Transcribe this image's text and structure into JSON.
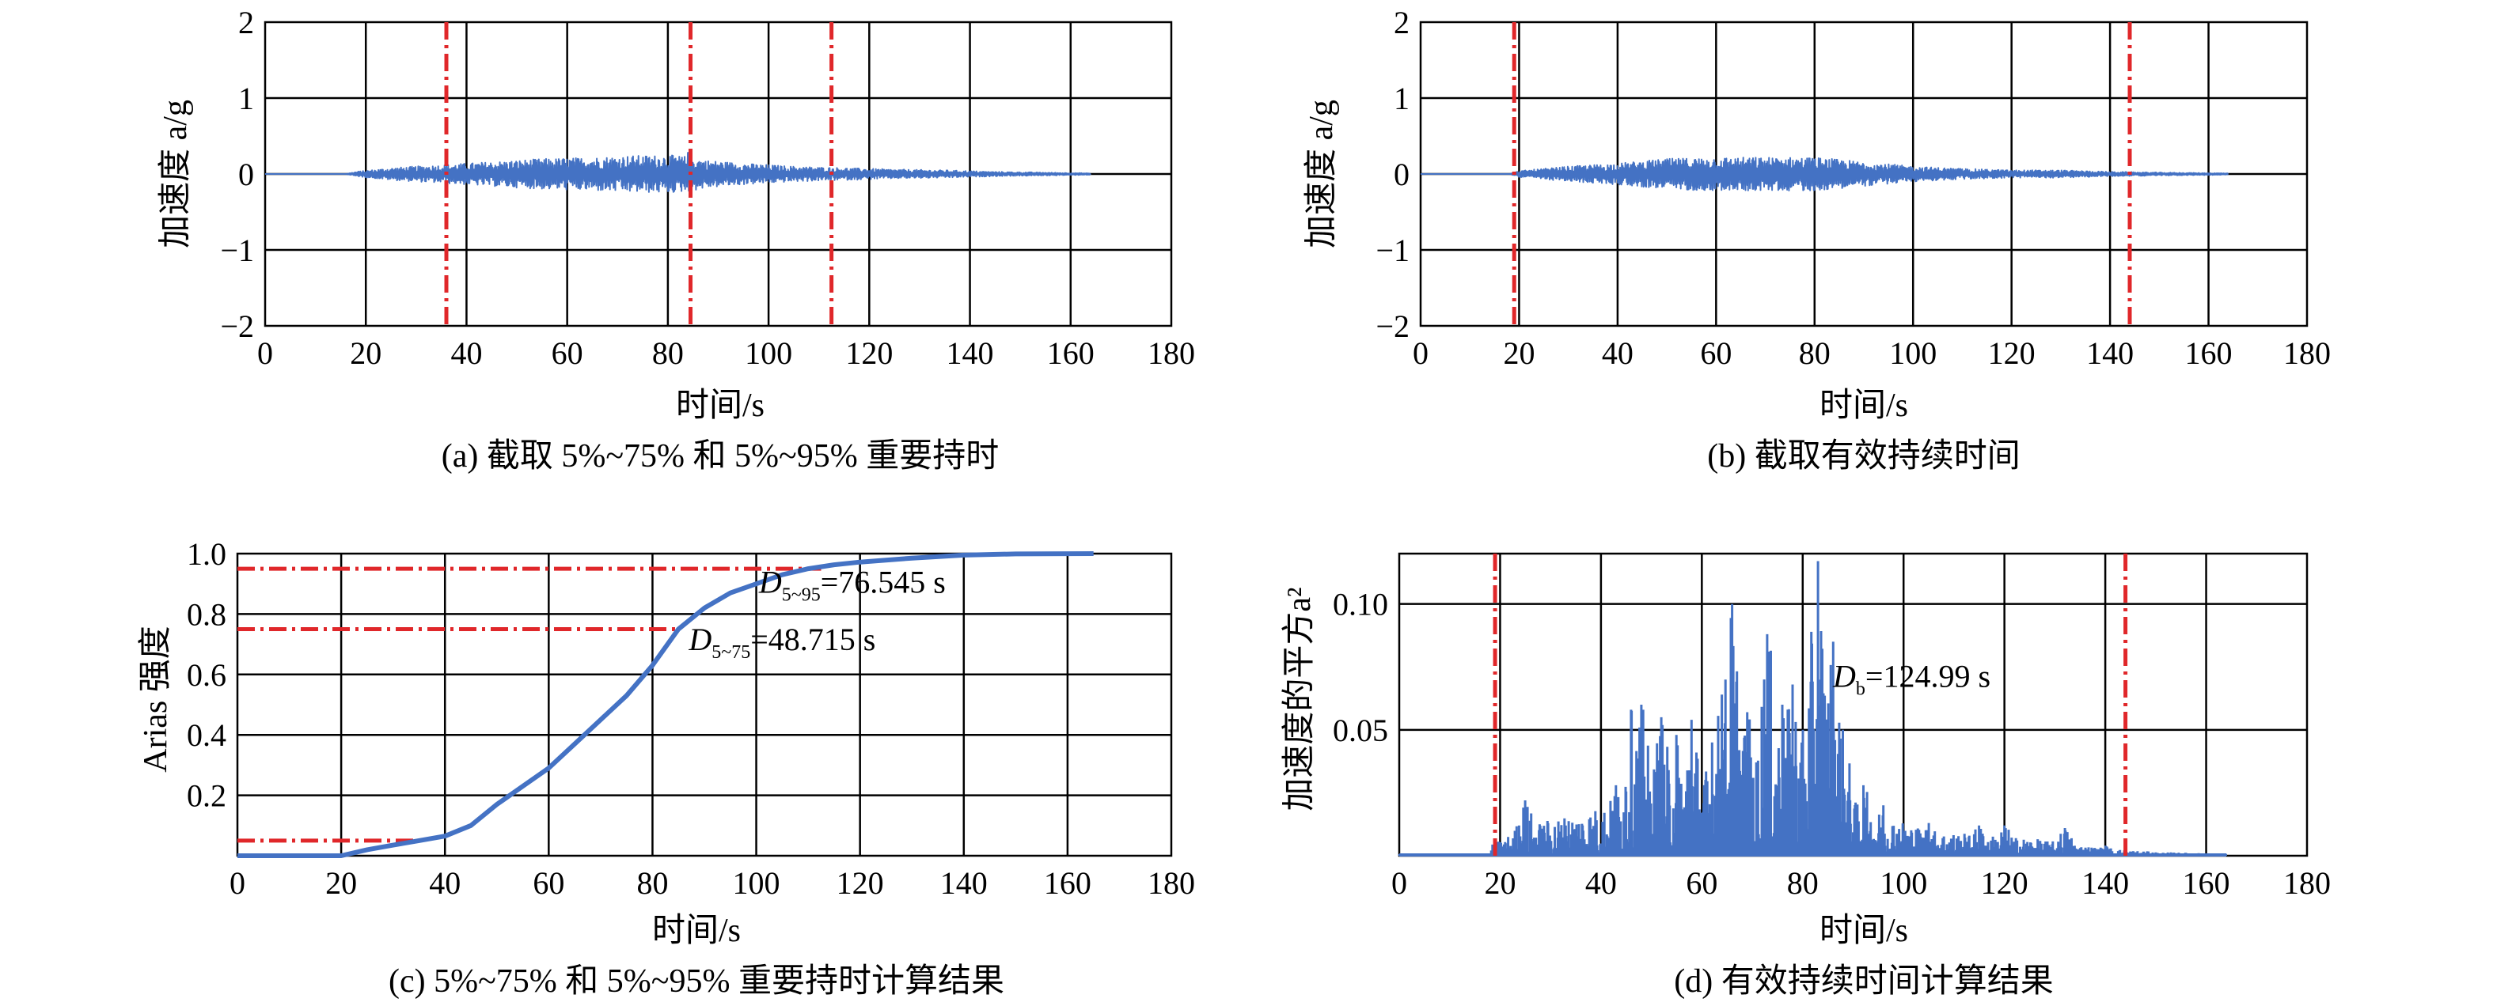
{
  "captions": {
    "a": "(a) 截取 5%~75% 和 5%~95% 重要持时",
    "b": "(b) 截取有效持续时间",
    "c": "(c) 5%~75% 和 5%~95% 重要持时计算结果",
    "d": "(d) 有效持续时间计算结果"
  },
  "chart_data": [
    {
      "id": "a",
      "type": "line",
      "xlabel": "时间/s",
      "ylabel": "加速度 a/g",
      "xlim": [
        0,
        180
      ],
      "ylim": [
        -2,
        2
      ],
      "xticks": [
        0,
        20,
        40,
        60,
        80,
        100,
        120,
        140,
        160,
        180
      ],
      "yticks": [
        2,
        1,
        0,
        -1,
        -2
      ],
      "ytick_labels": [
        "2",
        "1",
        "0",
        "−1",
        "−2"
      ],
      "grid": true,
      "series": [
        {
          "record_span": [
            0,
            164
          ],
          "envelope_x": [
            0,
            16,
            18,
            25,
            35,
            45,
            55,
            65,
            72,
            80,
            84,
            88,
            95,
            105,
            115,
            125,
            135,
            145,
            155,
            164
          ],
          "envelope_amplitude": [
            0,
            0,
            0.03,
            0.08,
            0.12,
            0.16,
            0.2,
            0.22,
            0.24,
            0.25,
            0.23,
            0.18,
            0.14,
            0.1,
            0.08,
            0.06,
            0.05,
            0.03,
            0.02,
            0.01
          ],
          "peak": {
            "x": 84,
            "y": 0.28
          }
        }
      ],
      "vlines": [
        36,
        84.5,
        112.5
      ],
      "vline_color": "#E0272A"
    },
    {
      "id": "b",
      "type": "line",
      "xlabel": "时间/s",
      "ylabel": "加速度 a/g",
      "xlim": [
        0,
        180
      ],
      "ylim": [
        -2,
        2
      ],
      "xticks": [
        0,
        20,
        40,
        60,
        80,
        100,
        120,
        140,
        160,
        180
      ],
      "yticks": [
        2,
        1,
        0,
        -1,
        -2
      ],
      "ytick_labels": [
        "2",
        "1",
        "0",
        "−1",
        "−2"
      ],
      "grid": true,
      "series": [
        {
          "record_span": [
            0,
            164
          ],
          "envelope_x": [
            0,
            18,
            20,
            30,
            40,
            50,
            60,
            70,
            80,
            90,
            100,
            110,
            120,
            130,
            140,
            150,
            164
          ],
          "envelope_amplitude": [
            0,
            0,
            0.04,
            0.1,
            0.14,
            0.2,
            0.22,
            0.22,
            0.22,
            0.16,
            0.1,
            0.07,
            0.05,
            0.05,
            0.03,
            0.02,
            0.01
          ]
        }
      ],
      "vlines": [
        19,
        144
      ],
      "vline_color": "#E0272A"
    },
    {
      "id": "c",
      "type": "line",
      "xlabel": "时间/s",
      "ylabel": "Arias 强度",
      "xlim": [
        0,
        180
      ],
      "ylim": [
        0,
        1.0
      ],
      "xticks": [
        0,
        20,
        40,
        60,
        80,
        100,
        120,
        140,
        160,
        180
      ],
      "yticks": [
        0.2,
        0.4,
        0.6,
        0.8,
        1.0
      ],
      "ytick_labels": [
        "0.2",
        "0.4",
        "0.6",
        "0.8",
        "1.0"
      ],
      "grid": true,
      "series": [
        {
          "x": [
            0,
            20,
            25,
            30,
            35,
            40,
            45,
            50,
            55,
            60,
            65,
            70,
            75,
            80,
            85,
            90,
            95,
            100,
            105,
            110,
            115,
            120,
            130,
            140,
            150,
            165
          ],
          "y": [
            0,
            0,
            0.02,
            0.035,
            0.05,
            0.065,
            0.1,
            0.17,
            0.23,
            0.29,
            0.37,
            0.45,
            0.53,
            0.63,
            0.75,
            0.82,
            0.87,
            0.9,
            0.93,
            0.95,
            0.963,
            0.972,
            0.985,
            0.995,
            0.999,
            1.0
          ]
        }
      ],
      "hlines": [
        {
          "y": 0.05,
          "x_end": 35
        },
        {
          "y": 0.75,
          "x_end": 84.5
        },
        {
          "y": 0.95,
          "x_end": 112.5
        }
      ],
      "annotations": [
        {
          "main": "D",
          "sub": "5~95",
          "text": "=76.545 s",
          "x": 100.5,
          "y": 0.87
        },
        {
          "main": "D",
          "sub": "5~75",
          "text": "=48.715 s",
          "x": 87,
          "y": 0.68
        }
      ]
    },
    {
      "id": "d",
      "type": "line",
      "xlabel": "时间/s",
      "ylabel": "加速度的平方a²",
      "xlim": [
        0,
        180
      ],
      "ylim": [
        0,
        0.12
      ],
      "xticks": [
        0,
        20,
        40,
        60,
        80,
        100,
        120,
        140,
        160,
        180
      ],
      "yticks": [
        0.05,
        0.1
      ],
      "ytick_labels": [
        "0.05",
        "0.10"
      ],
      "grid": true,
      "series": [
        {
          "record_span": [
            0,
            164
          ],
          "peaks": [
            {
              "x": 25,
              "y": 0.022
            },
            {
              "x": 33,
              "y": 0.012
            },
            {
              "x": 43,
              "y": 0.028
            },
            {
              "x": 46,
              "y": 0.058
            },
            {
              "x": 48,
              "y": 0.06
            },
            {
              "x": 52,
              "y": 0.055
            },
            {
              "x": 55,
              "y": 0.048
            },
            {
              "x": 58,
              "y": 0.054
            },
            {
              "x": 62,
              "y": 0.045
            },
            {
              "x": 64,
              "y": 0.064
            },
            {
              "x": 66,
              "y": 0.1
            },
            {
              "x": 69,
              "y": 0.057
            },
            {
              "x": 73,
              "y": 0.088
            },
            {
              "x": 76,
              "y": 0.06
            },
            {
              "x": 78,
              "y": 0.068
            },
            {
              "x": 80,
              "y": 0.05
            },
            {
              "x": 83,
              "y": 0.117
            },
            {
              "x": 86,
              "y": 0.085
            },
            {
              "x": 88,
              "y": 0.05
            },
            {
              "x": 92,
              "y": 0.028
            },
            {
              "x": 96,
              "y": 0.02
            },
            {
              "x": 105,
              "y": 0.013
            },
            {
              "x": 115,
              "y": 0.012
            },
            {
              "x": 120,
              "y": 0.012
            },
            {
              "x": 132,
              "y": 0.011
            },
            {
              "x": 140,
              "y": 0.004
            }
          ]
        }
      ],
      "vlines": [
        19,
        144
      ],
      "vline_color": "#E0272A",
      "annotations": [
        {
          "main": "D",
          "sub": "b",
          "text": "=124.99 s",
          "x": 86,
          "y": 0.067
        }
      ]
    }
  ]
}
